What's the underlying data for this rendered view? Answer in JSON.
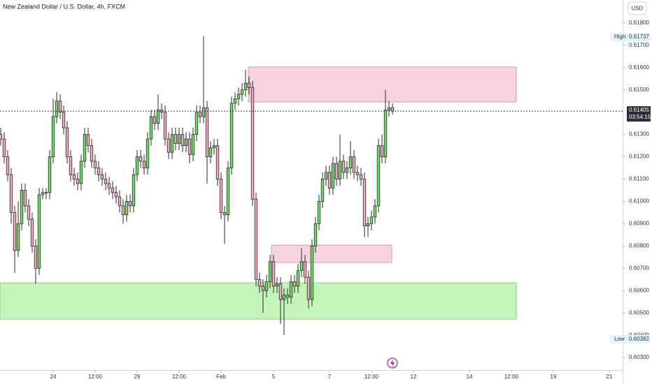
{
  "chart_data": {
    "type": "candlestick",
    "title": "New Zealand Dollar / U.S. Dollar, 4h, FXCM",
    "currency": "USD",
    "up_color": "#6fdc6a",
    "down_color": "#f0a8ba",
    "border_color": "#2a2a2a",
    "grid": false,
    "xlim": [
      -15.2,
      162.8
    ],
    "ylim": [
      0.60244,
      0.61903
    ],
    "xticks": [
      {
        "value": 0,
        "label": "24"
      },
      {
        "value": 12,
        "label": "12:00"
      },
      {
        "value": 24,
        "label": "29"
      },
      {
        "value": 36,
        "label": "12:00"
      },
      {
        "value": 48,
        "label": "Feb"
      },
      {
        "value": 63,
        "label": "5"
      },
      {
        "value": 79,
        "label": "7"
      },
      {
        "value": 91,
        "label": "12:00"
      },
      {
        "value": 103,
        "label": "12"
      },
      {
        "value": 119,
        "label": "14"
      },
      {
        "value": 131,
        "label": "12:00"
      },
      {
        "value": 143,
        "label": "19"
      },
      {
        "value": 159,
        "label": "21"
      }
    ],
    "yticks": [
      {
        "value": 0.618,
        "label": "0.61800"
      },
      {
        "value": 0.617,
        "label": "0.61700"
      },
      {
        "value": 0.616,
        "label": "0.61600"
      },
      {
        "value": 0.615,
        "label": "0.61500"
      },
      {
        "value": 0.613,
        "label": "0.61300"
      },
      {
        "value": 0.612,
        "label": "0.61200"
      },
      {
        "value": 0.611,
        "label": "0.61100"
      },
      {
        "value": 0.61,
        "label": "0.61000"
      },
      {
        "value": 0.609,
        "label": "0.60900"
      },
      {
        "value": 0.608,
        "label": "0.60800"
      },
      {
        "value": 0.607,
        "label": "0.60700"
      },
      {
        "value": 0.606,
        "label": "0.60600"
      },
      {
        "value": 0.605,
        "label": "0.60500"
      },
      {
        "value": 0.604,
        "label": "0.60400"
      },
      {
        "value": 0.603,
        "label": "0.60300"
      }
    ],
    "last_price": 0.61405,
    "countdown": "03:54:15",
    "high_marker": {
      "text": "High",
      "value": 0.61737
    },
    "low_marker": {
      "text": "Low",
      "value": 0.60382
    },
    "zones": [
      {
        "x1": 55.8,
        "x2": 132.4,
        "y1": 0.61603,
        "y2": 0.61446,
        "color": "#f7d3de",
        "border": "#c9a0ab"
      },
      {
        "x1": 62.4,
        "x2": 96.8,
        "y1": 0.60804,
        "y2": 0.60726,
        "color": "#f7d3de",
        "border": "#c9a0ab"
      },
      {
        "x1": -15.2,
        "x2": 132.4,
        "y1": 0.60635,
        "y2": 0.60472,
        "color": "#c3f5b8",
        "border": "#8fcf86"
      }
    ],
    "x": [
      -15,
      -14,
      -13,
      -12,
      -11,
      -10,
      -9,
      -8,
      -7,
      -6,
      -5,
      -4,
      -3,
      -2,
      -1,
      0,
      1,
      2,
      3,
      4,
      5,
      6,
      7,
      8,
      9,
      10,
      11,
      12,
      13,
      14,
      15,
      16,
      17,
      18,
      19,
      20,
      21,
      22,
      23,
      24,
      25,
      26,
      27,
      28,
      29,
      30,
      31,
      32,
      33,
      34,
      35,
      36,
      37,
      38,
      39,
      40,
      41,
      42,
      43,
      44,
      45,
      46,
      47,
      48,
      49,
      50,
      51,
      52,
      53,
      54,
      55,
      56,
      57,
      58,
      59,
      60,
      61,
      62,
      63,
      64,
      65,
      66,
      67,
      68,
      69,
      70,
      71,
      72,
      73,
      74,
      75,
      76,
      77,
      78,
      79,
      80,
      81,
      82,
      83,
      84,
      85,
      86,
      87,
      88,
      89,
      90,
      91,
      92,
      93,
      94,
      95,
      96,
      97
    ],
    "open": [
      0.613,
      0.6128,
      0.612,
      0.6112,
      0.6095,
      0.6078,
      0.609,
      0.6105,
      0.6098,
      0.6092,
      0.608,
      0.607,
      0.6103,
      0.6104,
      0.6104,
      0.612,
      0.6138,
      0.6145,
      0.614,
      0.6133,
      0.612,
      0.6112,
      0.611,
      0.6108,
      0.6118,
      0.613,
      0.6125,
      0.6118,
      0.6115,
      0.6112,
      0.611,
      0.6108,
      0.6106,
      0.6104,
      0.6102,
      0.6098,
      0.6094,
      0.61,
      0.6098,
      0.6112,
      0.612,
      0.6118,
      0.6115,
      0.6128,
      0.6138,
      0.6135,
      0.6141,
      0.614,
      0.6128,
      0.6122,
      0.613,
      0.6126,
      0.613,
      0.6125,
      0.6128,
      0.6121,
      0.613,
      0.614,
      0.6138,
      0.6142,
      0.612,
      0.6124,
      0.6125,
      0.611,
      0.6095,
      0.6094,
      0.6115,
      0.6144,
      0.6146,
      0.6148,
      0.615,
      0.6153,
      0.6151,
      0.6101,
      0.6065,
      0.6062,
      0.606,
      0.6064,
      0.6073,
      0.6062,
      0.6063,
      0.6056,
      0.6058,
      0.6057,
      0.6064,
      0.6062,
      0.6069,
      0.6073,
      0.6066,
      0.6056,
      0.608,
      0.609,
      0.61,
      0.611,
      0.6113,
      0.6106,
      0.6117,
      0.611,
      0.6118,
      0.6113,
      0.6115,
      0.612,
      0.6113,
      0.6112,
      0.611,
      0.6089,
      0.609,
      0.6093,
      0.6098,
      0.6125,
      0.612,
      0.6141,
      0.6142
    ],
    "high": [
      0.6133,
      0.6131,
      0.6123,
      0.6115,
      0.6098,
      0.61,
      0.6108,
      0.6108,
      0.6101,
      0.6095,
      0.6083,
      0.6106,
      0.6106,
      0.6106,
      0.6123,
      0.6146,
      0.6149,
      0.6148,
      0.6143,
      0.6136,
      0.6123,
      0.6115,
      0.6113,
      0.6121,
      0.6133,
      0.6133,
      0.6128,
      0.6121,
      0.6118,
      0.6115,
      0.6113,
      0.6111,
      0.6109,
      0.6107,
      0.6105,
      0.6101,
      0.6103,
      0.6103,
      0.6115,
      0.6123,
      0.6123,
      0.6121,
      0.6131,
      0.6141,
      0.6141,
      0.6148,
      0.6144,
      0.6143,
      0.6131,
      0.6133,
      0.6133,
      0.6133,
      0.6133,
      0.6131,
      0.6131,
      0.6133,
      0.6143,
      0.6143,
      0.6174,
      0.6145,
      0.6127,
      0.6128,
      0.6128,
      0.6113,
      0.6098,
      0.6118,
      0.6147,
      0.6149,
      0.6151,
      0.6153,
      0.6159,
      0.6156,
      0.6154,
      0.6104,
      0.6068,
      0.6065,
      0.6067,
      0.6076,
      0.6076,
      0.6066,
      0.6066,
      0.6061,
      0.6061,
      0.6067,
      0.6067,
      0.6072,
      0.6079,
      0.6076,
      0.6069,
      0.6083,
      0.6093,
      0.6103,
      0.6113,
      0.6116,
      0.6116,
      0.612,
      0.612,
      0.613,
      0.6121,
      0.6118,
      0.6127,
      0.6123,
      0.6116,
      0.6115,
      0.6113,
      0.6093,
      0.6096,
      0.6101,
      0.6128,
      0.613,
      0.615,
      0.6145,
      0.6144
    ],
    "low": [
      0.6125,
      0.6117,
      0.6109,
      0.609,
      0.6068,
      0.6075,
      0.6087,
      0.6095,
      0.6089,
      0.6077,
      0.6063,
      0.6067,
      0.6101,
      0.6101,
      0.6101,
      0.6117,
      0.6135,
      0.6137,
      0.613,
      0.6117,
      0.6109,
      0.6107,
      0.6105,
      0.6105,
      0.6115,
      0.6122,
      0.6115,
      0.6112,
      0.6109,
      0.6107,
      0.6105,
      0.6103,
      0.6101,
      0.6099,
      0.6095,
      0.609,
      0.6091,
      0.6095,
      0.6095,
      0.6109,
      0.6115,
      0.6112,
      0.6112,
      0.6125,
      0.6132,
      0.6132,
      0.6137,
      0.6125,
      0.6119,
      0.6119,
      0.6123,
      0.6123,
      0.6122,
      0.6122,
      0.6117,
      0.6118,
      0.6127,
      0.6135,
      0.6135,
      0.6108,
      0.6117,
      0.6121,
      0.6107,
      0.6092,
      0.6081,
      0.6091,
      0.6112,
      0.6141,
      0.6143,
      0.6145,
      0.6147,
      0.6148,
      0.6098,
      0.6062,
      0.6059,
      0.605,
      0.6057,
      0.6061,
      0.6059,
      0.6059,
      0.6045,
      0.604,
      0.6054,
      0.6054,
      0.6059,
      0.6059,
      0.6066,
      0.6063,
      0.6052,
      0.6053,
      0.6077,
      0.6087,
      0.6097,
      0.6107,
      0.6103,
      0.6103,
      0.6107,
      0.6107,
      0.611,
      0.611,
      0.6112,
      0.611,
      0.6109,
      0.6107,
      0.6084,
      0.6084,
      0.6087,
      0.609,
      0.6095,
      0.6117,
      0.6117,
      0.6138,
      0.6139
    ],
    "close": [
      0.6128,
      0.612,
      0.6112,
      0.6095,
      0.6078,
      0.609,
      0.6105,
      0.6098,
      0.6092,
      0.608,
      0.607,
      0.6103,
      0.6104,
      0.6104,
      0.612,
      0.6138,
      0.6145,
      0.614,
      0.6133,
      0.612,
      0.6112,
      0.611,
      0.6108,
      0.6118,
      0.613,
      0.6125,
      0.6118,
      0.6115,
      0.6112,
      0.611,
      0.6108,
      0.6106,
      0.6104,
      0.6102,
      0.6098,
      0.6094,
      0.61,
      0.6098,
      0.6112,
      0.612,
      0.6118,
      0.6115,
      0.6128,
      0.6138,
      0.6135,
      0.6141,
      0.614,
      0.6128,
      0.6122,
      0.613,
      0.6126,
      0.613,
      0.6125,
      0.6128,
      0.6121,
      0.613,
      0.614,
      0.6138,
      0.6142,
      0.612,
      0.6124,
      0.6125,
      0.611,
      0.6095,
      0.6094,
      0.6115,
      0.6144,
      0.6146,
      0.6148,
      0.615,
      0.6153,
      0.6151,
      0.6101,
      0.6065,
      0.6062,
      0.606,
      0.6064,
      0.6073,
      0.6062,
      0.6063,
      0.6056,
      0.6058,
      0.6057,
      0.6064,
      0.6062,
      0.6069,
      0.6073,
      0.6066,
      0.6056,
      0.608,
      0.609,
      0.61,
      0.611,
      0.6113,
      0.6106,
      0.6117,
      0.611,
      0.6118,
      0.6113,
      0.6115,
      0.612,
      0.6113,
      0.6112,
      0.611,
      0.6089,
      0.609,
      0.6093,
      0.6098,
      0.6125,
      0.612,
      0.6141,
      0.6142,
      0.61405
    ]
  }
}
